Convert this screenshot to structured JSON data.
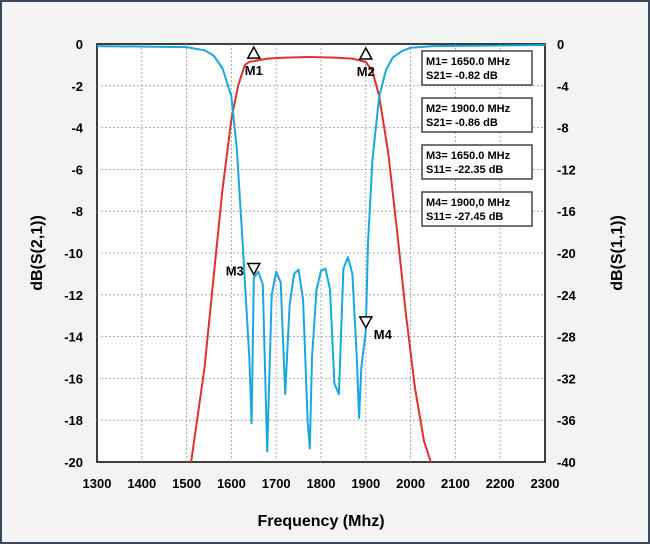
{
  "chart_data": {
    "type": "line",
    "xlabel": "Frequency (Mhz)",
    "ylabel_left": "dB(S(2,1))",
    "ylabel_right": "dB(S(1,1))",
    "xlim": [
      1300,
      2300
    ],
    "ylim_left": [
      -20,
      0
    ],
    "ylim_right": [
      -40,
      0
    ],
    "x_ticks": [
      "1300",
      "1400",
      "1500",
      "1600",
      "1700",
      "1800",
      "1900",
      "2000",
      "2100",
      "2200",
      "2300"
    ],
    "y_ticks_left": [
      "0",
      "-2",
      "-4",
      "-6",
      "-8",
      "-10",
      "-12",
      "-14",
      "-16",
      "-18",
      "-20"
    ],
    "y_ticks_right": [
      "0",
      "-4",
      "-8",
      "-12",
      "-16",
      "-20",
      "-24",
      "-28",
      "-32",
      "-36",
      "-40"
    ],
    "grid": true,
    "series": [
      {
        "name": "dB(S(2,1))",
        "axis": "left",
        "color": "#e03030",
        "x": [
          1510,
          1540,
          1560,
          1580,
          1600,
          1615,
          1630,
          1640,
          1650,
          1680,
          1720,
          1775,
          1830,
          1870,
          1900,
          1915,
          1930,
          1950,
          1970,
          1990,
          2010,
          2030,
          2045
        ],
        "y": [
          -20,
          -15.5,
          -11.2,
          -7,
          -3.6,
          -2,
          -1,
          -0.85,
          -0.82,
          -0.7,
          -0.65,
          -0.62,
          -0.65,
          -0.7,
          -0.86,
          -1.3,
          -2.5,
          -5.2,
          -9,
          -13,
          -16.5,
          -19,
          -20
        ]
      },
      {
        "name": "dB(S(1,1))",
        "axis": "right",
        "color": "#18a8e0",
        "x": [
          1300,
          1500,
          1540,
          1560,
          1580,
          1600,
          1612,
          1625,
          1640,
          1645,
          1650,
          1660,
          1670,
          1680,
          1690,
          1700,
          1710,
          1720,
          1730,
          1740,
          1750,
          1760,
          1770,
          1775,
          1780,
          1790,
          1800,
          1810,
          1820,
          1830,
          1840,
          1850,
          1860,
          1870,
          1880,
          1885,
          1890,
          1900,
          1905,
          1915,
          1930,
          1945,
          1960,
          1980,
          2000,
          2050,
          2300
        ],
        "y": [
          -0.2,
          -0.3,
          -0.6,
          -1.1,
          -2.3,
          -5,
          -10,
          -19,
          -30,
          -36.3,
          -22.35,
          -21.8,
          -23,
          -39,
          -24,
          -21.8,
          -22.8,
          -33.5,
          -25,
          -22,
          -21.6,
          -24.5,
          -36,
          -38.7,
          -30,
          -23.5,
          -21.7,
          -21.5,
          -23.5,
          -32.5,
          -33.5,
          -21.5,
          -20.4,
          -22,
          -30,
          -35.8,
          -31,
          -27.45,
          -19,
          -11,
          -5,
          -2.5,
          -1.3,
          -0.7,
          -0.35,
          -0.2,
          -0.1
        ]
      }
    ],
    "markers": [
      {
        "label": "M1",
        "x": 1650,
        "y": -0.82,
        "axis": "left",
        "shape": "up"
      },
      {
        "label": "M2",
        "x": 1900,
        "y": -0.86,
        "axis": "left",
        "shape": "up"
      },
      {
        "label": "M3",
        "x": 1650,
        "y": -22.35,
        "axis": "right",
        "shape": "down"
      },
      {
        "label": "M4",
        "x": 1900,
        "y": -27.45,
        "axis": "right",
        "shape": "down"
      }
    ],
    "readouts": [
      {
        "line1": "M1= 1650.0 MHz",
        "line2": "S21= -0.82 dB"
      },
      {
        "line1": "M2= 1900.0 MHz",
        "line2": "S21= -0.86 dB"
      },
      {
        "line1": "M3= 1650.0 MHz",
        "line2": "S11= -22.35 dB"
      },
      {
        "line1": "M4= 1900,0 MHz",
        "line2": "S11= -27.45 dB"
      }
    ]
  }
}
